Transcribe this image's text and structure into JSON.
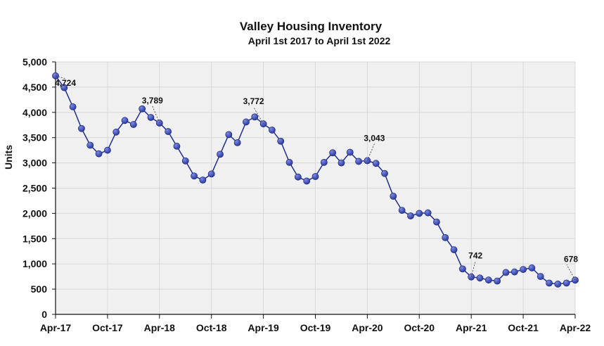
{
  "chart_data": {
    "type": "line",
    "title": "Valley Housing Inventory",
    "subtitle": "April 1st 2017 to April 1st 2022",
    "ylabel": "Units",
    "xlabel": "",
    "ylim": [
      0,
      5000
    ],
    "yticks": [
      0,
      500,
      1000,
      1500,
      2000,
      2500,
      3000,
      3500,
      4000,
      4500,
      5000
    ],
    "ytick_labels": [
      "0",
      "500",
      "1,000",
      "1,500",
      "2,000",
      "2,500",
      "3,000",
      "3,500",
      "4,000",
      "4,500",
      "5,000"
    ],
    "xtick_labels": [
      "Apr-17",
      "Oct-17",
      "Apr-18",
      "Oct-18",
      "Apr-19",
      "Oct-19",
      "Apr-20",
      "Oct-20",
      "Apr-21",
      "Oct-21",
      "Apr-22"
    ],
    "grid": true,
    "colors": {
      "line": "#1f2f8f",
      "marker": "#2b3aa0",
      "plot_bg": "#f0f0f0",
      "grid": "#d8d8d8"
    },
    "x": [
      "Apr-17",
      "May-17",
      "Jun-17",
      "Jul-17",
      "Aug-17",
      "Sep-17",
      "Oct-17",
      "Nov-17",
      "Dec-17",
      "Jan-18",
      "Feb-18",
      "Mar-18",
      "Apr-18",
      "May-18",
      "Jun-18",
      "Jul-18",
      "Aug-18",
      "Sep-18",
      "Oct-18",
      "Nov-18",
      "Dec-18",
      "Jan-19",
      "Feb-19",
      "Mar-19",
      "Apr-19",
      "May-19",
      "Jun-19",
      "Jul-19",
      "Aug-19",
      "Sep-19",
      "Oct-19",
      "Nov-19",
      "Dec-19",
      "Jan-20",
      "Feb-20",
      "Mar-20",
      "Apr-20",
      "May-20",
      "Jun-20",
      "Jul-20",
      "Aug-20",
      "Sep-20",
      "Oct-20",
      "Nov-20",
      "Dec-20",
      "Jan-21",
      "Feb-21",
      "Mar-21",
      "Apr-21",
      "May-21",
      "Jun-21",
      "Jul-21",
      "Aug-21",
      "Sep-21",
      "Oct-21",
      "Nov-21",
      "Dec-21",
      "Jan-22",
      "Feb-22",
      "Mar-22",
      "Apr-22"
    ],
    "series": [
      {
        "values": [
          4724,
          4490,
          4110,
          3680,
          3350,
          3180,
          3250,
          3610,
          3840,
          3760,
          4070,
          3900,
          3789,
          3620,
          3330,
          3040,
          2740,
          2660,
          2780,
          3170,
          3560,
          3400,
          3810,
          3910,
          3772,
          3650,
          3430,
          3010,
          2720,
          2640,
          2730,
          3010,
          3200,
          3000,
          3210,
          3030,
          3043,
          2990,
          2790,
          2340,
          2060,
          1950,
          2000,
          2010,
          1830,
          1520,
          1280,
          900,
          742,
          720,
          680,
          660,
          830,
          840,
          890,
          920,
          750,
          620,
          600,
          620,
          678
        ]
      }
    ],
    "data_labels": [
      {
        "text": "4,724",
        "index": 0
      },
      {
        "text": "3,789",
        "index": 12
      },
      {
        "text": "3,772",
        "index": 24
      },
      {
        "text": "3,043",
        "index": 36
      },
      {
        "text": "742",
        "index": 48
      },
      {
        "text": "678",
        "index": 60
      }
    ]
  }
}
